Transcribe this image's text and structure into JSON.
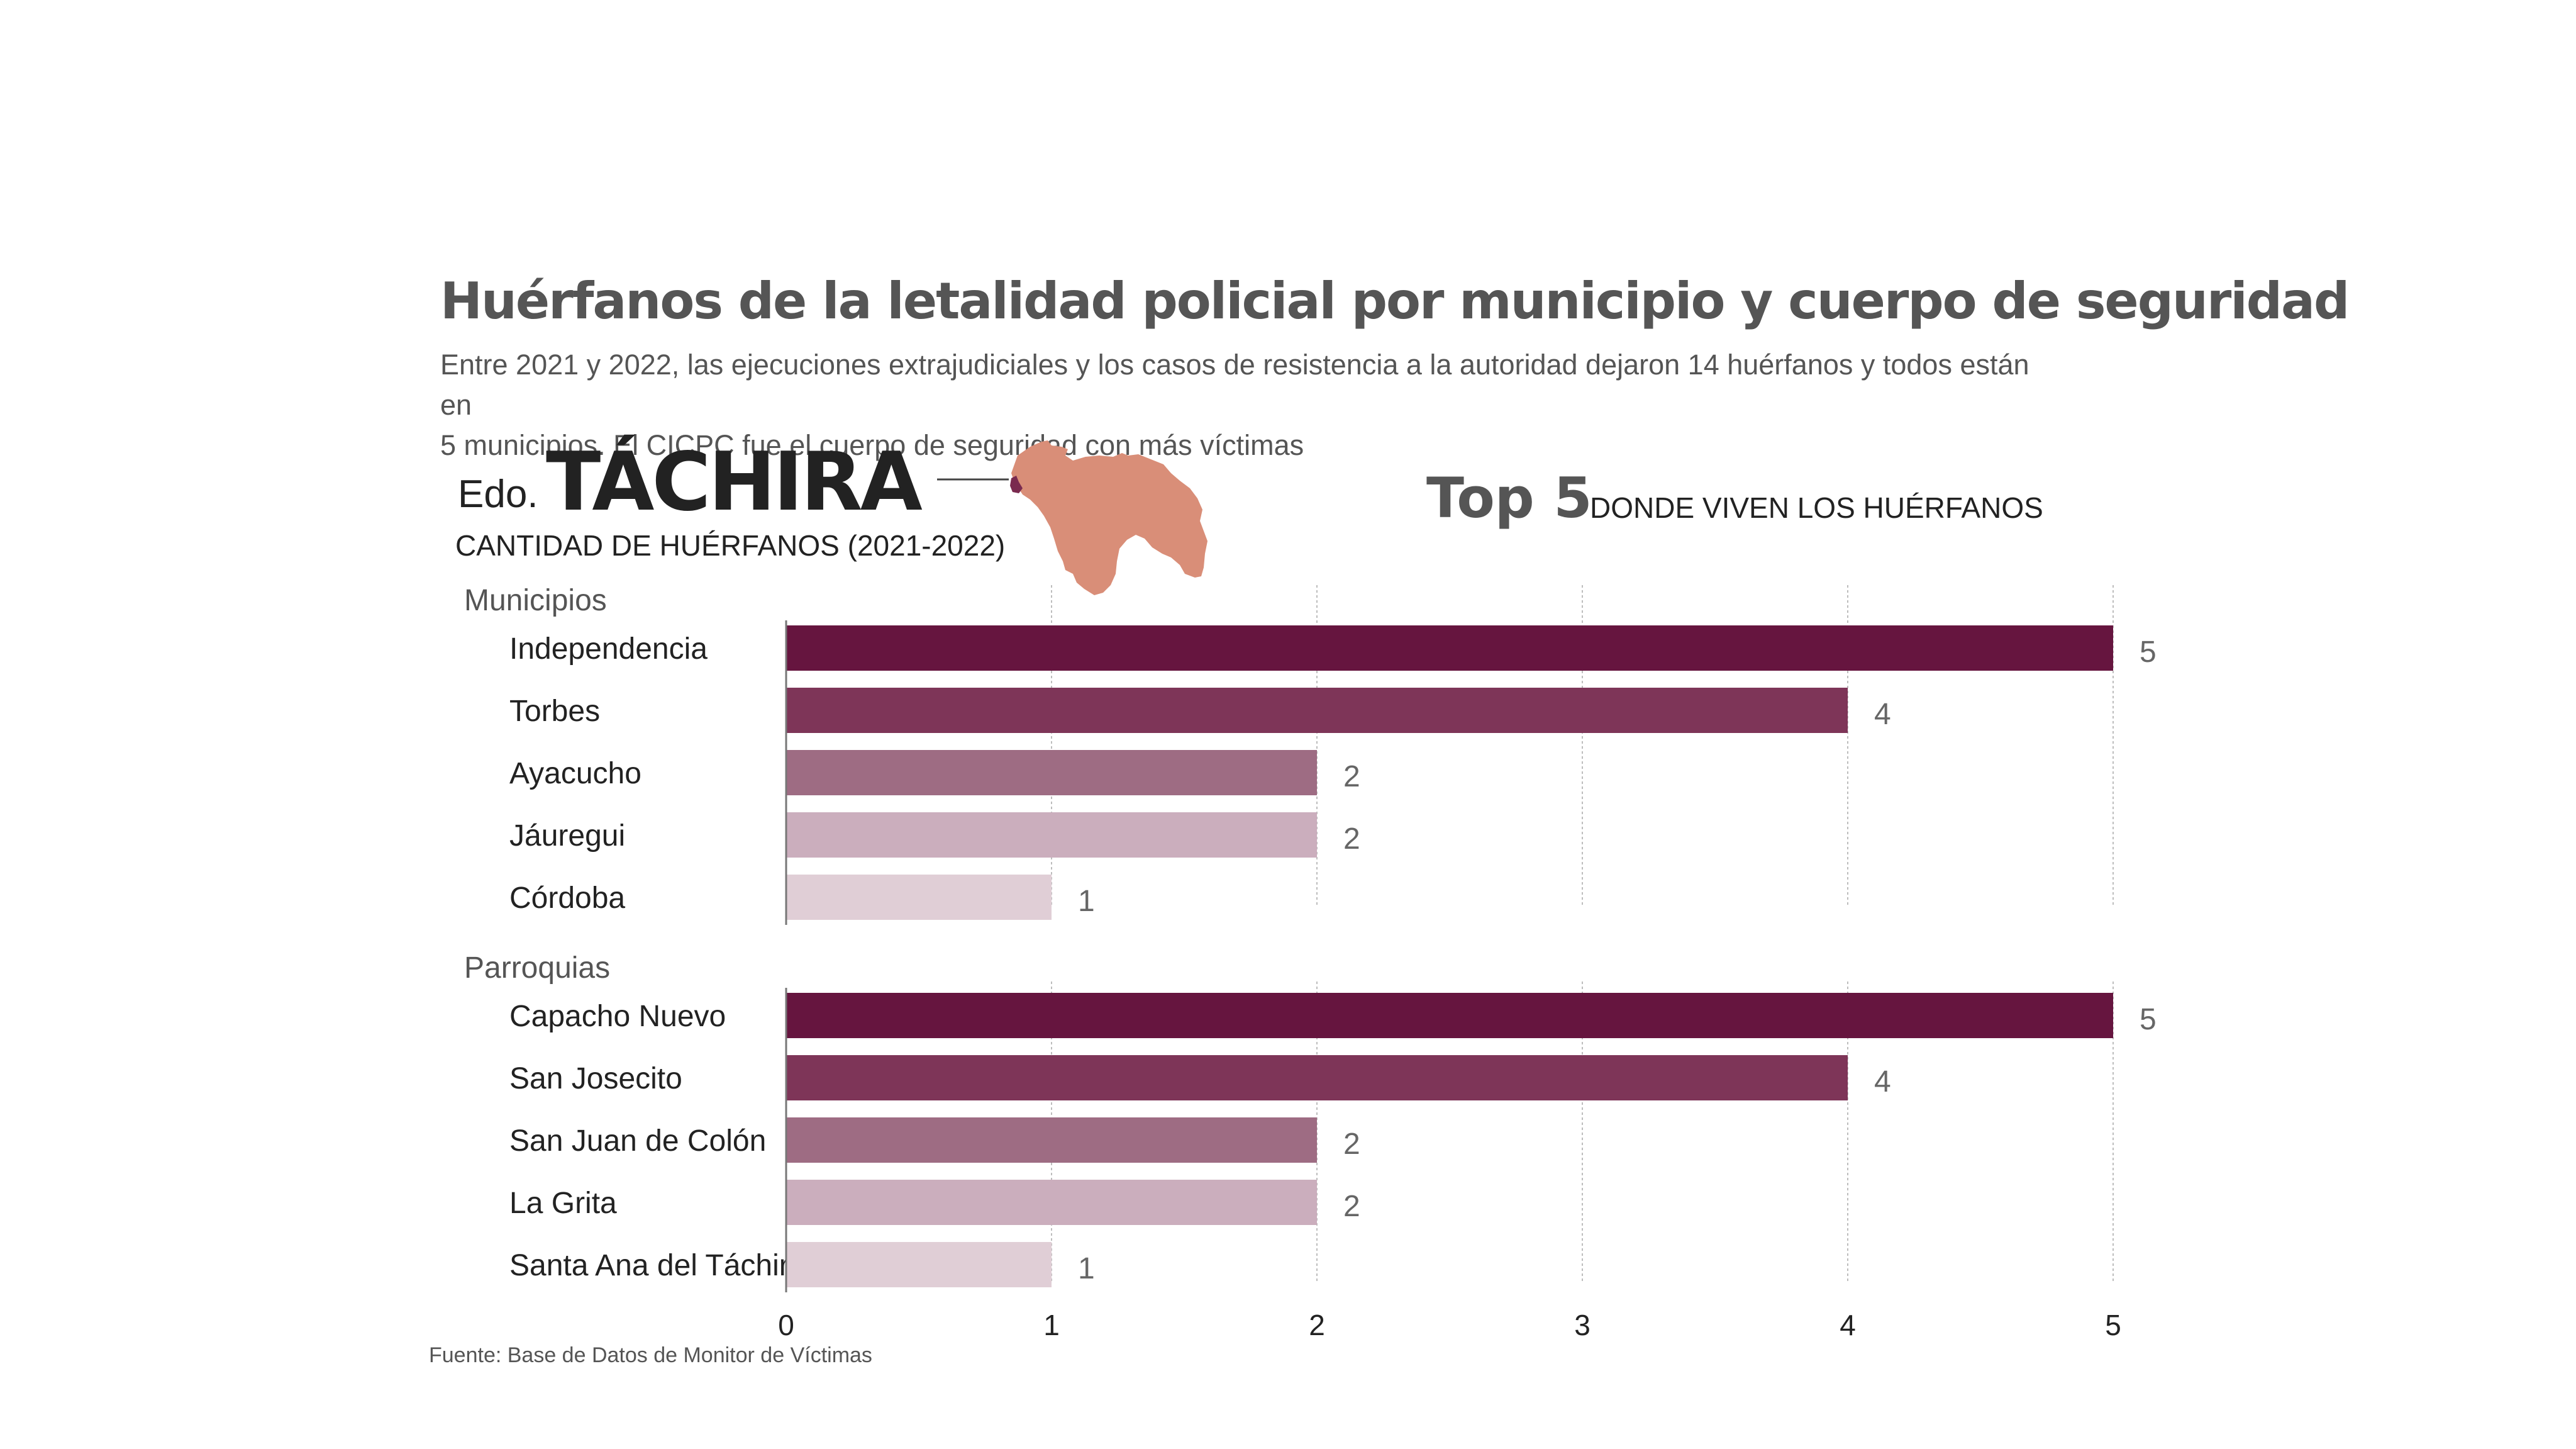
{
  "header": {
    "title": "Huérfanos de la letalidad policial por municipio y cuerpo de seguridad",
    "subtitle_line1": "Entre 2021 y 2022, las ejecuciones extrajudiciales y los casos de resistencia a la autoridad dejaron 14 huérfanos y todos están en",
    "subtitle_line2": "5 municipios. El CICPC fue el cuerpo de seguridad con más víctimas"
  },
  "state": {
    "prefix": "Edo.",
    "name": "TÁCHIRA",
    "caption": "CANTIDAD DE HUÉRFANOS (2021-2022)"
  },
  "top5": {
    "title": "Top 5",
    "caption": "DONDE VIVEN LOS HUÉRFANOS"
  },
  "colors": {
    "map_fill": "#d98e78",
    "highlight": "#7a2a4f",
    "rank": [
      "#66153f",
      "#7e3558",
      "#9e6c83",
      "#cbaebd",
      "#e0ced6"
    ],
    "grid": "#bdbdbd",
    "label": "#222222",
    "value_label": "#666666"
  },
  "chart_data": {
    "type": "bar",
    "orientation": "horizontal",
    "xlim": [
      0,
      5
    ],
    "x_ticks": [
      "0",
      "1",
      "2",
      "3",
      "4",
      "5"
    ],
    "groups": [
      {
        "name": "Municipios",
        "categories": [
          "Independencia",
          "Torbes",
          "Ayacucho",
          "Jáuregui",
          "Córdoba"
        ],
        "values": [
          5,
          4,
          2,
          2,
          1
        ]
      },
      {
        "name": "Parroquias",
        "categories": [
          "Capacho Nuevo",
          "San Josecito",
          "San Juan de Colón",
          "La Grita",
          "Santa Ana del Táchira"
        ],
        "values": [
          5,
          4,
          2,
          2,
          1
        ]
      }
    ]
  },
  "footer": {
    "source": "Fuente: Base de Datos de Monitor de Víctimas"
  }
}
